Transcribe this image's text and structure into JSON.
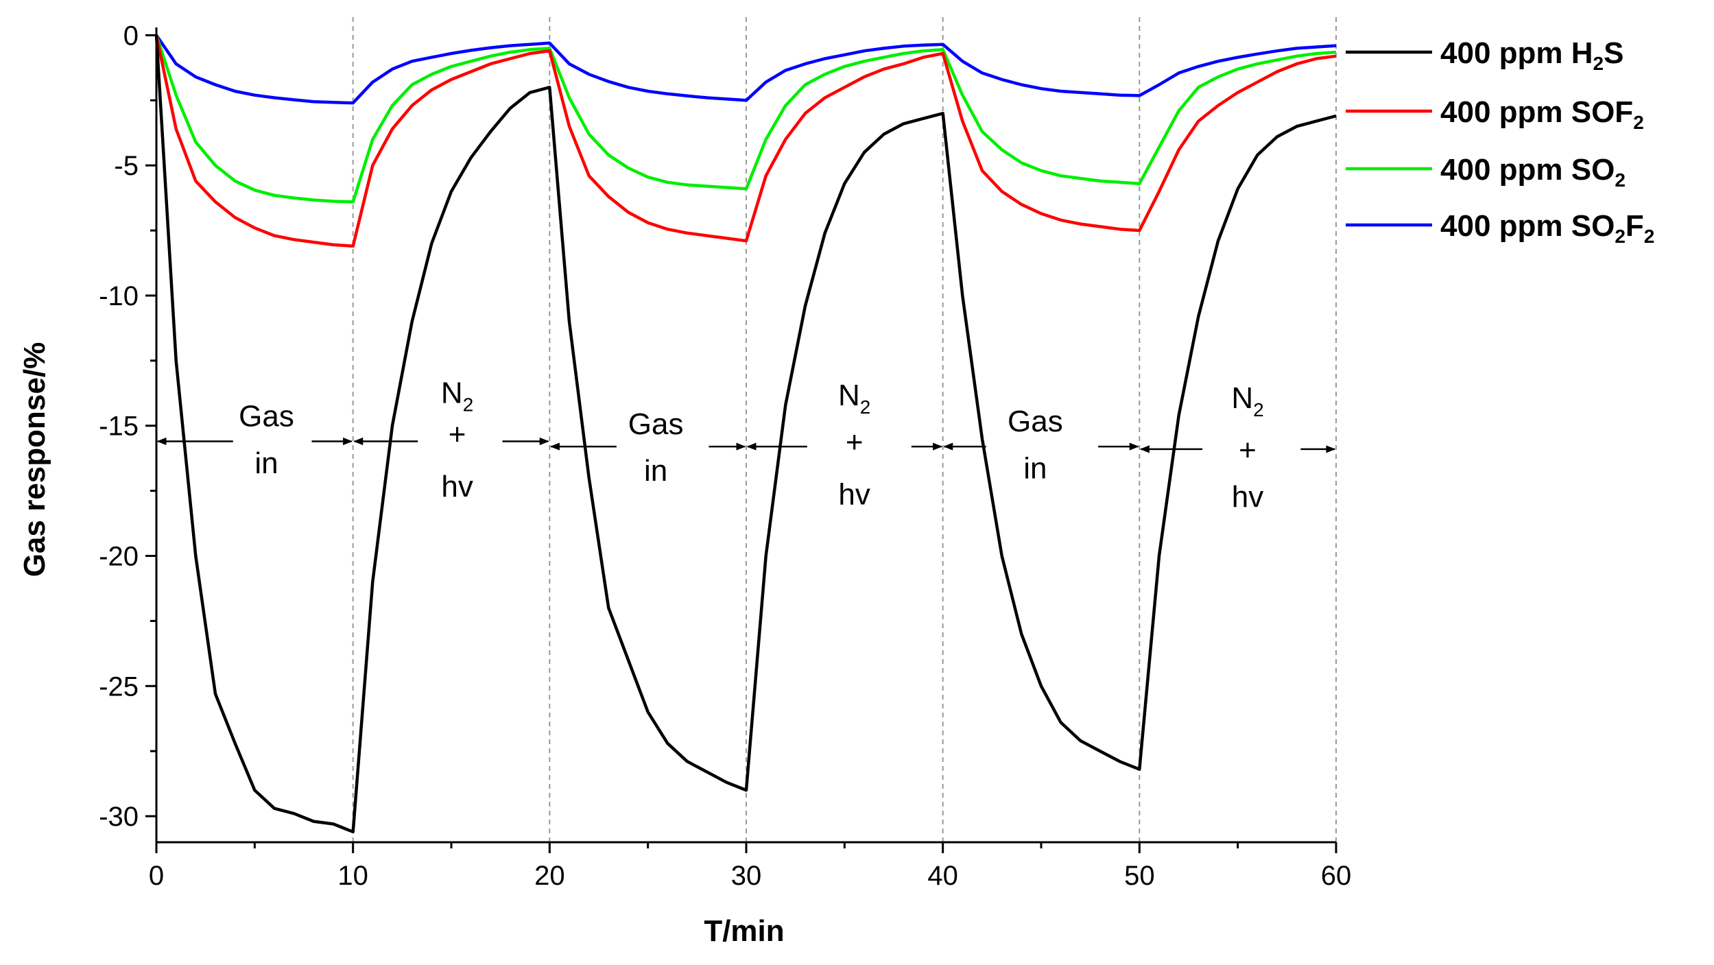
{
  "chart_data": {
    "type": "line",
    "title": "",
    "xlabel": "T/min",
    "ylabel": "Gas response/%",
    "xlim": [
      0,
      60
    ],
    "ylim": [
      -31,
      0.3
    ],
    "xticks": [
      0,
      10,
      20,
      30,
      40,
      50,
      60
    ],
    "xtick_labels": [
      "0",
      "10",
      "20",
      "30",
      "40",
      "50",
      "60"
    ],
    "yticks": [
      0,
      -5,
      -10,
      -15,
      -20,
      -25,
      -30
    ],
    "ytick_labels": [
      "0",
      "-5",
      "-10",
      "-15",
      "-20",
      "-25",
      "-30"
    ],
    "grid": "vertical dashed lines at x = 10, 20, 30, 40, 50, 60",
    "legend_position": "top-right outside",
    "series": [
      {
        "name": "400 ppm H2S",
        "legend": {
          "parts": [
            [
              "400 ppm H",
              false
            ],
            [
              "2",
              true
            ],
            [
              "S",
              false
            ]
          ]
        },
        "color": "#000000",
        "x": [
          0,
          1,
          2,
          3,
          4,
          5,
          6,
          7,
          8,
          9,
          10,
          11,
          12,
          13,
          14,
          15,
          16,
          17,
          18,
          19,
          20,
          21,
          22,
          23,
          24,
          25,
          26,
          27,
          28,
          29,
          30,
          31,
          32,
          33,
          34,
          35,
          36,
          37,
          38,
          39,
          40,
          41,
          42,
          43,
          44,
          45,
          46,
          47,
          48,
          49,
          50,
          51,
          52,
          53,
          54,
          55,
          56,
          57,
          58,
          59,
          60
        ],
        "y": [
          0,
          -12.5,
          -20,
          -25.3,
          -27.2,
          -29,
          -29.7,
          -29.9,
          -30.2,
          -30.3,
          -30.6,
          -21,
          -15,
          -11,
          -8,
          -6,
          -4.7,
          -3.7,
          -2.8,
          -2.2,
          -2,
          -11,
          -17,
          -22,
          -24,
          -26,
          -27.2,
          -27.9,
          -28.3,
          -28.7,
          -29,
          -20,
          -14.2,
          -10.4,
          -7.6,
          -5.7,
          -4.5,
          -3.8,
          -3.4,
          -3.2,
          -3,
          -10,
          -15.5,
          -20,
          -23,
          -25,
          -26.4,
          -27.1,
          -27.5,
          -27.9,
          -28.2,
          -20,
          -14.6,
          -10.8,
          -7.9,
          -5.9,
          -4.6,
          -3.9,
          -3.5,
          -3.3,
          -3.1
        ]
      },
      {
        "name": "400 ppm SOF2",
        "legend": {
          "parts": [
            [
              "400 ppm SOF",
              false
            ],
            [
              "2",
              true
            ]
          ]
        },
        "color": "#ff0000",
        "x": [
          0,
          1,
          2,
          3,
          4,
          5,
          6,
          7,
          8,
          9,
          10,
          11,
          12,
          13,
          14,
          15,
          16,
          17,
          18,
          19,
          20,
          21,
          22,
          23,
          24,
          25,
          26,
          27,
          28,
          29,
          30,
          31,
          32,
          33,
          34,
          35,
          36,
          37,
          38,
          39,
          40,
          41,
          42,
          43,
          44,
          45,
          46,
          47,
          48,
          49,
          50,
          51,
          52,
          53,
          54,
          55,
          56,
          57,
          58,
          59,
          60
        ],
        "y": [
          0,
          -3.6,
          -5.6,
          -6.4,
          -7,
          -7.4,
          -7.7,
          -7.85,
          -7.95,
          -8.05,
          -8.1,
          -5,
          -3.6,
          -2.7,
          -2.1,
          -1.7,
          -1.4,
          -1.1,
          -0.9,
          -0.7,
          -0.6,
          -3.5,
          -5.4,
          -6.2,
          -6.8,
          -7.2,
          -7.45,
          -7.6,
          -7.7,
          -7.8,
          -7.9,
          -5.4,
          -4,
          -3,
          -2.4,
          -2,
          -1.6,
          -1.3,
          -1.1,
          -0.85,
          -0.7,
          -3.3,
          -5.2,
          -6,
          -6.5,
          -6.85,
          -7.1,
          -7.25,
          -7.35,
          -7.45,
          -7.5,
          -6,
          -4.4,
          -3.3,
          -2.7,
          -2.2,
          -1.8,
          -1.4,
          -1.1,
          -0.9,
          -0.8
        ]
      },
      {
        "name": "400 ppm SO2",
        "legend": {
          "parts": [
            [
              "400 ppm SO",
              false
            ],
            [
              "2",
              true
            ]
          ]
        },
        "color": "#00ee00",
        "x": [
          0,
          1,
          2,
          3,
          4,
          5,
          6,
          7,
          8,
          9,
          10,
          11,
          12,
          13,
          14,
          15,
          16,
          17,
          18,
          19,
          20,
          21,
          22,
          23,
          24,
          25,
          26,
          27,
          28,
          29,
          30,
          31,
          32,
          33,
          34,
          35,
          36,
          37,
          38,
          39,
          40,
          41,
          42,
          43,
          44,
          45,
          46,
          47,
          48,
          49,
          50,
          51,
          52,
          53,
          54,
          55,
          56,
          57,
          58,
          59,
          60
        ],
        "y": [
          0,
          -2.3,
          -4.1,
          -5,
          -5.6,
          -5.95,
          -6.15,
          -6.25,
          -6.33,
          -6.38,
          -6.4,
          -4,
          -2.7,
          -1.9,
          -1.5,
          -1.2,
          -1,
          -0.8,
          -0.65,
          -0.55,
          -0.5,
          -2.4,
          -3.8,
          -4.6,
          -5.1,
          -5.45,
          -5.65,
          -5.75,
          -5.8,
          -5.85,
          -5.9,
          -4,
          -2.7,
          -1.9,
          -1.5,
          -1.2,
          -1,
          -0.85,
          -0.7,
          -0.6,
          -0.55,
          -2.3,
          -3.7,
          -4.4,
          -4.9,
          -5.2,
          -5.4,
          -5.5,
          -5.6,
          -5.65,
          -5.7,
          -4.3,
          -2.9,
          -2,
          -1.6,
          -1.3,
          -1.1,
          -0.95,
          -0.8,
          -0.7,
          -0.65
        ]
      },
      {
        "name": "400 ppm SO2F2",
        "legend": {
          "parts": [
            [
              "400 ppm SO",
              false
            ],
            [
              "2",
              true
            ],
            [
              "F",
              false
            ],
            [
              "2",
              true
            ]
          ]
        },
        "color": "#0000ff",
        "x": [
          0,
          1,
          2,
          3,
          4,
          5,
          6,
          7,
          8,
          9,
          10,
          11,
          12,
          13,
          14,
          15,
          16,
          17,
          18,
          19,
          20,
          21,
          22,
          23,
          24,
          25,
          26,
          27,
          28,
          29,
          30,
          31,
          32,
          33,
          34,
          35,
          36,
          37,
          38,
          39,
          40,
          41,
          42,
          43,
          44,
          45,
          46,
          47,
          48,
          49,
          50,
          51,
          52,
          53,
          54,
          55,
          56,
          57,
          58,
          59,
          60
        ],
        "y": [
          0,
          -1.1,
          -1.6,
          -1.9,
          -2.15,
          -2.3,
          -2.4,
          -2.48,
          -2.55,
          -2.58,
          -2.6,
          -1.8,
          -1.3,
          -1,
          -0.85,
          -0.7,
          -0.58,
          -0.48,
          -0.4,
          -0.35,
          -0.3,
          -1.1,
          -1.5,
          -1.78,
          -2,
          -2.15,
          -2.25,
          -2.33,
          -2.4,
          -2.45,
          -2.5,
          -1.8,
          -1.35,
          -1.1,
          -0.9,
          -0.75,
          -0.6,
          -0.5,
          -0.42,
          -0.38,
          -0.35,
          -1,
          -1.45,
          -1.7,
          -1.9,
          -2.05,
          -2.15,
          -2.2,
          -2.25,
          -2.3,
          -2.32,
          -1.9,
          -1.45,
          -1.2,
          -1,
          -0.85,
          -0.72,
          -0.6,
          -0.5,
          -0.45,
          -0.4
        ]
      }
    ],
    "annotations": [
      {
        "line1": "Gas",
        "line2": "in",
        "cx": 5.6,
        "y_arrow": -15.6,
        "y_line1": -14.6,
        "y_line2": -16.4,
        "gap": [
          3.9,
          7.9
        ]
      },
      {
        "line1": "N",
        "line1_sub": "2",
        "line2": "+",
        "line3": "hv",
        "cx": 15.3,
        "y_arrow": -15.6,
        "y_line1": -13.7,
        "y_line2": -15.3,
        "y_line3": -17.3,
        "gap": [
          13.3,
          17.6
        ]
      },
      {
        "line1": "Gas",
        "line2": "in",
        "cx": 25.4,
        "y_arrow": -15.8,
        "y_line1": -14.9,
        "y_line2": -16.7,
        "gap": [
          23.4,
          28.1
        ]
      },
      {
        "line1": "N",
        "line1_sub": "2",
        "line2": "+",
        "line3": "hv",
        "cx": 35.5,
        "y_arrow": -15.8,
        "y_line1": -13.8,
        "y_line2": -15.6,
        "y_line3": -17.6,
        "gap": [
          33.1,
          38.4
        ]
      },
      {
        "line1": "Gas",
        "line2": "in",
        "cx": 44.7,
        "y_arrow": -15.8,
        "y_line1": -14.8,
        "y_line2": -16.6,
        "gap": [
          42.2,
          47.9
        ]
      },
      {
        "line1": "N",
        "line1_sub": "2",
        "line2": "+",
        "line3": "hv",
        "cx": 55.5,
        "y_arrow": -15.9,
        "y_line1": -13.9,
        "y_line2": -15.9,
        "y_line3": -17.7,
        "gap": [
          53.2,
          58.2
        ]
      }
    ]
  }
}
